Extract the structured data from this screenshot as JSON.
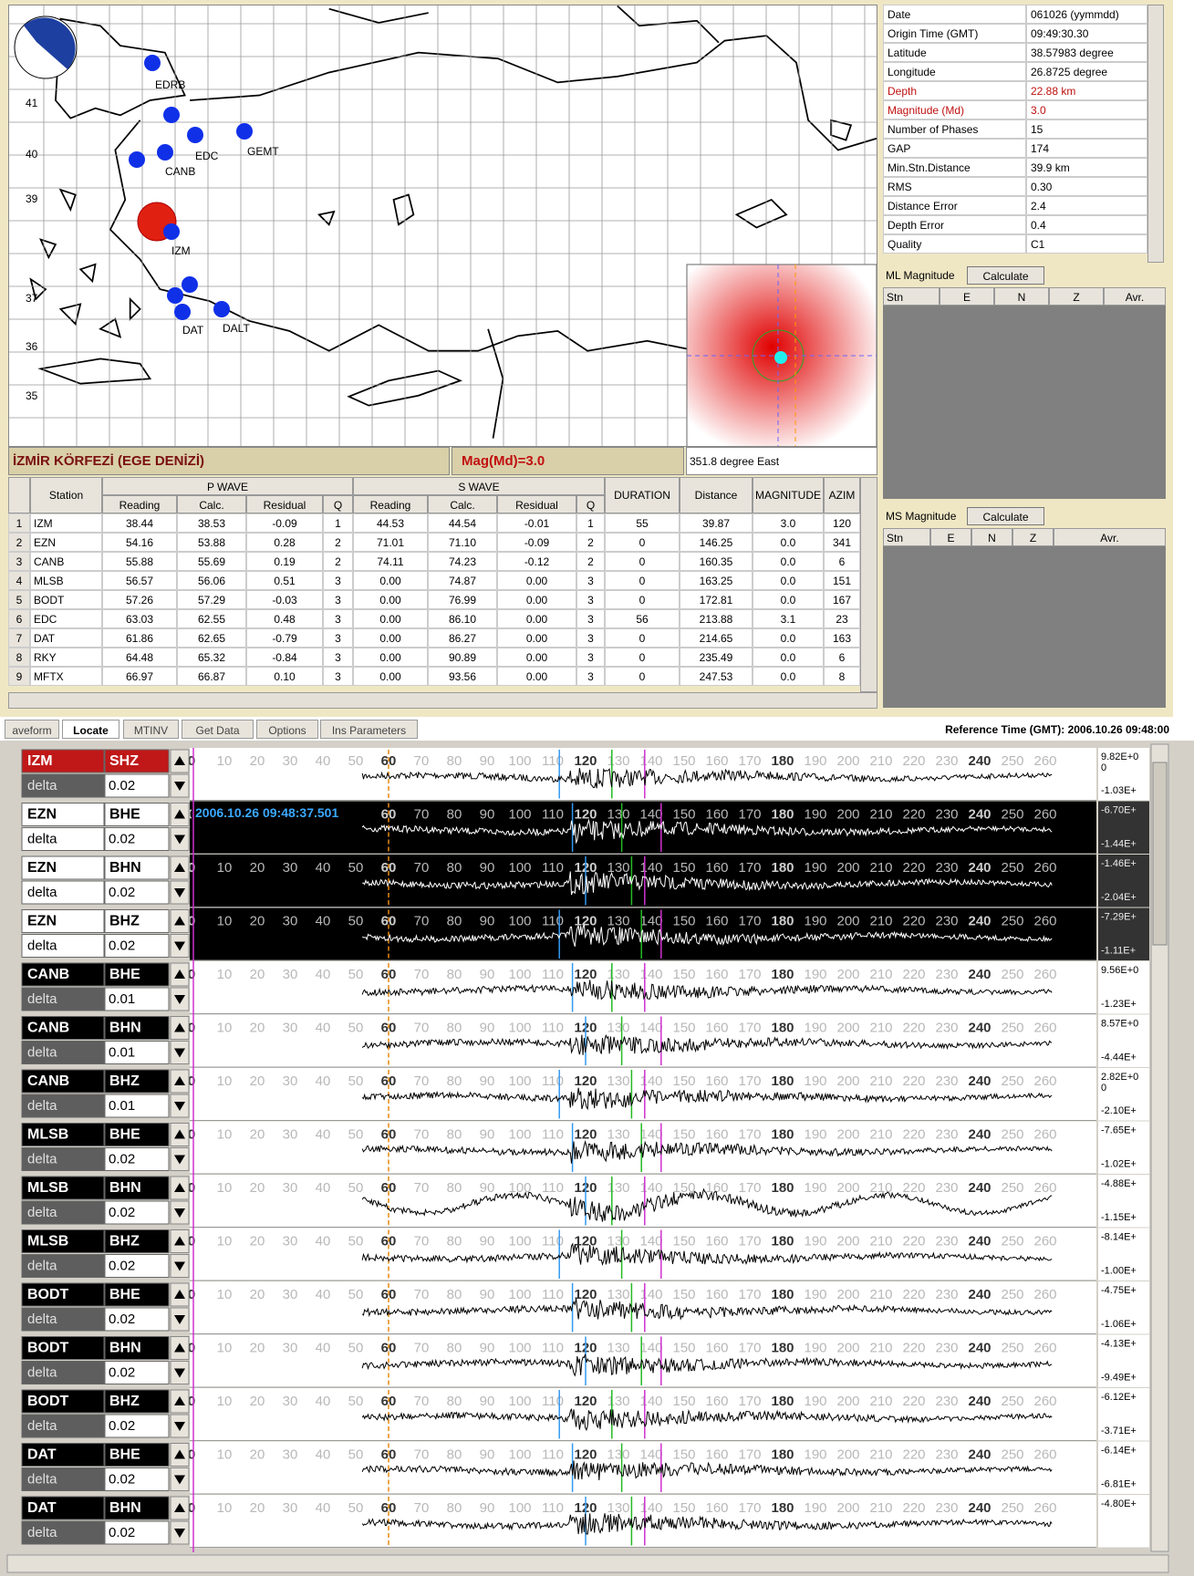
{
  "map": {
    "lat_labels": [
      "41",
      "40",
      "39",
      "37",
      "36",
      "35"
    ],
    "station_labels": [
      "EDRB",
      "EDC",
      "GEMT",
      "CANB",
      "IZM",
      "DAT",
      "DALT"
    ]
  },
  "region": "İZMİR KÖRFEZİ (EGE DENİZİ)",
  "magnitude_label": "Mag(Md)=3.0",
  "azimuth": "351.8 degree  East",
  "info": [
    [
      "Date",
      "061026 (yymmdd)"
    ],
    [
      "Origin Time (GMT)",
      "09:49:30.30"
    ],
    [
      "Latitude",
      "38.57983 degree"
    ],
    [
      "Longitude",
      "26.8725 degree"
    ],
    [
      "Depth",
      "22.88 km"
    ],
    [
      "Magnitude (Md)",
      "3.0"
    ],
    [
      "Number of Phases",
      "15"
    ],
    [
      "GAP",
      "174"
    ],
    [
      "Min.Stn.Distance",
      "39.9 km"
    ],
    [
      "RMS",
      "0.30"
    ],
    [
      "Distance Error",
      "2.4"
    ],
    [
      "Depth Error",
      "0.4"
    ],
    [
      "Quality",
      "C1"
    ]
  ],
  "ml_panel": {
    "title": "ML Magnitude",
    "button": "Calculate",
    "columns": [
      "Stn",
      "E",
      "N",
      "Z",
      "Avr."
    ]
  },
  "ms_panel": {
    "title": "MS Magnitude",
    "button": "Calculate",
    "columns": [
      "Stn",
      "E",
      "N",
      "Z",
      "Avr."
    ]
  },
  "phase_table": {
    "station": "Station",
    "p_wave": "P WAVE",
    "s_wave": "S WAVE",
    "p_sub": [
      "Reading",
      "Calc.",
      "Residual",
      "Q"
    ],
    "s_sub": [
      "Reading",
      "Calc.",
      "Residual",
      "Q"
    ],
    "duration": "DURATION",
    "distance": "Distance",
    "magnitude": "MAGNITUDE",
    "azimuth": "AZIM",
    "rows": [
      [
        "1",
        "IZM",
        "38.44",
        "38.53",
        "-0.09",
        "1",
        "44.53",
        "44.54",
        "-0.01",
        "1",
        "55",
        "39.87",
        "3.0",
        "120"
      ],
      [
        "2",
        "EZN",
        "54.16",
        "53.88",
        "0.28",
        "2",
        "71.01",
        "71.10",
        "-0.09",
        "2",
        "0",
        "146.25",
        "0.0",
        "341"
      ],
      [
        "3",
        "CANB",
        "55.88",
        "55.69",
        "0.19",
        "2",
        "74.11",
        "74.23",
        "-0.12",
        "2",
        "0",
        "160.35",
        "0.0",
        "6"
      ],
      [
        "4",
        "MLSB",
        "56.57",
        "56.06",
        "0.51",
        "3",
        "0.00",
        "74.87",
        "0.00",
        "3",
        "0",
        "163.25",
        "0.0",
        "151"
      ],
      [
        "5",
        "BODT",
        "57.26",
        "57.29",
        "-0.03",
        "3",
        "0.00",
        "76.99",
        "0.00",
        "3",
        "0",
        "172.81",
        "0.0",
        "167"
      ],
      [
        "6",
        "EDC",
        "63.03",
        "62.55",
        "0.48",
        "3",
        "0.00",
        "86.10",
        "0.00",
        "3",
        "56",
        "213.88",
        "3.1",
        "23"
      ],
      [
        "7",
        "DAT",
        "61.86",
        "62.65",
        "-0.79",
        "3",
        "0.00",
        "86.27",
        "0.00",
        "3",
        "0",
        "214.65",
        "0.0",
        "163"
      ],
      [
        "8",
        "RKY",
        "64.48",
        "65.32",
        "-0.84",
        "3",
        "0.00",
        "90.89",
        "0.00",
        "3",
        "0",
        "235.49",
        "0.0",
        "6"
      ],
      [
        "9",
        "MFTX",
        "66.97",
        "66.87",
        "0.10",
        "3",
        "0.00",
        "93.56",
        "0.00",
        "3",
        "0",
        "247.53",
        "0.0",
        "8"
      ]
    ]
  },
  "tabs": [
    "aveform",
    "Locate",
    "MTINV",
    "Get Data",
    "Options",
    "Ins Parameters"
  ],
  "reference_time": "Reference Time (GMT): 2006.10.26 09:48:00",
  "waveform": {
    "time_ticks": [
      0,
      10,
      20,
      30,
      40,
      50,
      60,
      70,
      80,
      90,
      100,
      110,
      120,
      130,
      140,
      150,
      160,
      170,
      180,
      190,
      200,
      210,
      220,
      230,
      240,
      250,
      260
    ],
    "timestamp": "2006.10.26 09:48:37.501",
    "delta_label": "delta",
    "rows": [
      {
        "station": "IZM",
        "channel": "SHZ",
        "delta": "0.02",
        "amp_top": "9.82E+0",
        "amp_mid": "0",
        "amp_bottom": "-1.03E+"
      },
      {
        "station": "EZN",
        "channel": "BHE",
        "delta": "0.02",
        "amp_top": "-6.70E+",
        "amp_bottom": "-1.44E+"
      },
      {
        "station": "EZN",
        "channel": "BHN",
        "delta": "0.02",
        "amp_top": "-1.46E+",
        "amp_bottom": "-2.04E+"
      },
      {
        "station": "EZN",
        "channel": "BHZ",
        "delta": "0.02",
        "amp_top": "-7.29E+",
        "amp_bottom": "-1.11E+"
      },
      {
        "station": "CANB",
        "channel": "BHE",
        "delta": "0.01",
        "amp_top": "9.56E+0",
        "amp_bottom": "-1.23E+"
      },
      {
        "station": "CANB",
        "channel": "BHN",
        "delta": "0.01",
        "amp_top": "8.57E+0",
        "amp_bottom": "-4.44E+"
      },
      {
        "station": "CANB",
        "channel": "BHZ",
        "delta": "0.01",
        "amp_top": "2.82E+0",
        "amp_mid": "0",
        "amp_bottom": "-2.10E+"
      },
      {
        "station": "MLSB",
        "channel": "BHE",
        "delta": "0.02",
        "amp_top": "-7.65E+",
        "amp_bottom": "-1.02E+"
      },
      {
        "station": "MLSB",
        "channel": "BHN",
        "delta": "0.02",
        "amp_top": "-4.88E+",
        "amp_bottom": "-1.15E+"
      },
      {
        "station": "MLSB",
        "channel": "BHZ",
        "delta": "0.02",
        "amp_top": "-8.14E+",
        "amp_bottom": "-1.00E+"
      },
      {
        "station": "BODT",
        "channel": "BHE",
        "delta": "0.02",
        "amp_top": "-4.75E+",
        "amp_bottom": "-1.06E+"
      },
      {
        "station": "BODT",
        "channel": "BHN",
        "delta": "0.02",
        "amp_top": "-4.13E+",
        "amp_bottom": "-9.49E+"
      },
      {
        "station": "BODT",
        "channel": "BHZ",
        "delta": "0.02",
        "amp_top": "-6.12E+",
        "amp_bottom": "-3.71E+"
      },
      {
        "station": "DAT",
        "channel": "BHE",
        "delta": "0.02",
        "amp_top": "-6.14E+",
        "amp_bottom": "-6.81E+"
      },
      {
        "station": "DAT",
        "channel": "BHN",
        "delta": "0.02",
        "amp_top": "-4.80E+"
      }
    ]
  }
}
